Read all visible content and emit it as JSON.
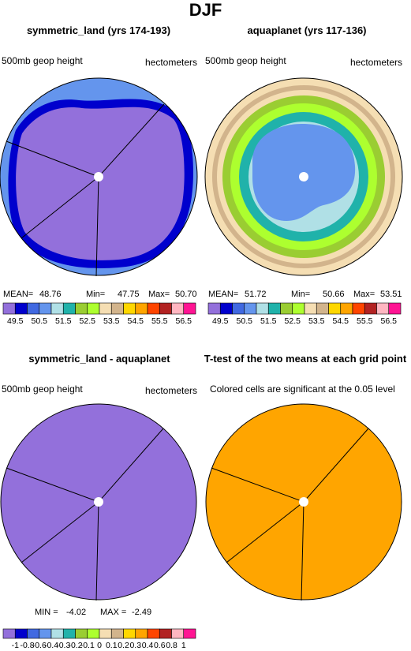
{
  "title": "DJF",
  "panels": [
    {
      "title": "symmetric_land (yrs 174-193)",
      "left_label": "500mb geop height",
      "right_label": "hectometers",
      "stats": {
        "mean_label": "MEAN=",
        "mean": "48.76",
        "min_label": "Min=",
        "min": "47.75",
        "max_label": "Max=",
        "max": "50.70"
      }
    },
    {
      "title": "aquaplanet (yrs 117-136)",
      "left_label": "500mb geop height",
      "right_label": "hectometers",
      "stats": {
        "mean_label": "MEAN=",
        "mean": "51.72",
        "min_label": "Min=",
        "min": "50.66",
        "max_label": "Max=",
        "max": "53.51"
      }
    },
    {
      "title": "symmetric_land - aquaplanet",
      "left_label": "500mb geop height",
      "right_label": "hectometers",
      "stats": {
        "min_label": "MIN =",
        "min": "-4.02",
        "max_label": "MAX =",
        "max": "-2.49"
      }
    },
    {
      "title": "T-test of the two means at each grid point",
      "left_label": "Colored cells are significant at the 0.05 level",
      "right_label": "",
      "stats": null
    }
  ],
  "colorbar_top": {
    "colors": [
      "#9370db",
      "#0000cd",
      "#4169e1",
      "#6495ed",
      "#b0e0e6",
      "#20b2aa",
      "#9acd32",
      "#adff2f",
      "#f5deb3",
      "#d2b48c",
      "#ffd700",
      "#ffa500",
      "#ff4500",
      "#b22222",
      "#ffb6c1",
      "#ff1493"
    ],
    "labels": [
      "49.5",
      "50.5",
      "51.5",
      "52.5",
      "53.5",
      "54.5",
      "55.5",
      "56.5"
    ]
  },
  "colorbar_bottom": {
    "colors": [
      "#9370db",
      "#0000cd",
      "#4169e1",
      "#6495ed",
      "#b0e0e6",
      "#20b2aa",
      "#9acd32",
      "#adff2f",
      "#f5deb3",
      "#d2b48c",
      "#ffd700",
      "#ffa500",
      "#ff4500",
      "#b22222",
      "#ffb6c1",
      "#ff1493"
    ],
    "labels": [
      "-1",
      "-0.8",
      "-0.6",
      "-0.4",
      "-0.3",
      "-0.2",
      "-0.1",
      "0",
      "0.1",
      "0.2",
      "0.3",
      "0.4",
      "0.6",
      "0.8",
      "1"
    ]
  },
  "chart_data": [
    {
      "type": "heatmap",
      "title": "symmetric_land (yrs 174-193)",
      "variable": "500mb geop height",
      "units": "hectometers",
      "mean": 48.76,
      "min": 47.75,
      "max": 50.7
    },
    {
      "type": "heatmap",
      "title": "aquaplanet (yrs 117-136)",
      "variable": "500mb geop height",
      "units": "hectometers",
      "mean": 51.72,
      "min": 50.66,
      "max": 53.51
    },
    {
      "type": "heatmap",
      "title": "symmetric_land - aquaplanet",
      "variable": "500mb geop height",
      "units": "hectometers",
      "min": -4.02,
      "max": -2.49
    },
    {
      "type": "heatmap",
      "title": "T-test of the two means at each grid point",
      "note": "Colored cells are significant at the 0.05 level"
    }
  ]
}
